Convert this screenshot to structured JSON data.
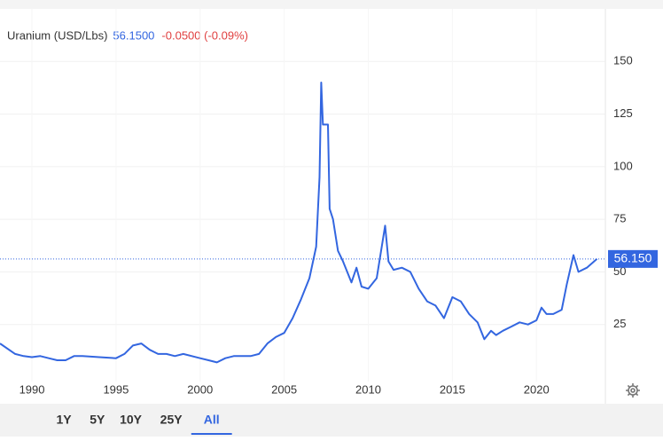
{
  "chart_data": {
    "type": "line",
    "title": "Uranium (USD/Lbs)",
    "price": "56.1500",
    "change": "-0.0500 (-0.09%)",
    "last_price": {
      "value": 56.15,
      "label": "56.150"
    },
    "ranges": [
      "1Y",
      "5Y",
      "10Y",
      "25Y",
      "All"
    ],
    "active_range": "All",
    "series": [
      {
        "color": "#3366e0",
        "x": [
          1988.1,
          1989,
          1989.5,
          1990,
          1990.5,
          1991,
          1991.5,
          1992,
          1992.5,
          1993,
          1994,
          1995,
          1995.5,
          1996,
          1996.5,
          1997,
          1997.5,
          1998,
          1998.5,
          1999,
          2000,
          2000.5,
          2001,
          2001.5,
          2002,
          2003,
          2003.5,
          2004,
          2004.5,
          2005,
          2005.5,
          2006,
          2006.5,
          2006.9,
          2007.1,
          2007.2,
          2007.3,
          2007.6,
          2007.7,
          2007.9,
          2008.2,
          2008.5,
          2009,
          2009.3,
          2009.6,
          2010,
          2010.5,
          2011,
          2011.2,
          2011.5,
          2012,
          2012.5,
          2013,
          2013.5,
          2014,
          2014.5,
          2015,
          2015.5,
          2016,
          2016.5,
          2016.9,
          2017.3,
          2017.6,
          2018,
          2018.5,
          2019,
          2019.5,
          2020,
          2020.3,
          2020.6,
          2021,
          2021.5,
          2021.8,
          2022.2,
          2022.5,
          2023,
          2023.6
        ],
        "values": [
          16,
          11,
          10,
          9.5,
          10,
          9,
          8,
          8,
          10,
          10,
          9.5,
          9,
          11,
          15,
          16,
          13,
          11,
          11,
          10,
          11,
          9,
          8,
          7,
          9,
          10,
          10,
          11,
          16,
          19,
          21,
          28,
          37,
          47,
          62,
          95,
          140,
          120,
          120,
          80,
          75,
          60,
          55,
          45,
          52,
          43,
          42,
          47,
          72,
          55,
          51,
          52,
          50,
          42,
          36,
          34,
          28,
          38,
          36,
          30,
          26,
          18,
          22,
          20,
          22,
          24,
          26,
          25,
          27,
          33,
          30,
          30,
          32,
          44,
          58,
          50,
          52,
          56.15
        ]
      }
    ],
    "xlim": [
      1988.1,
      2024.1
    ],
    "xticks": [
      1990,
      1995,
      2000,
      2005,
      2010,
      2015,
      2020
    ],
    "ylim": [
      0,
      175
    ],
    "yticks": [
      25,
      50,
      75,
      100,
      125,
      150
    ],
    "grid": true
  }
}
